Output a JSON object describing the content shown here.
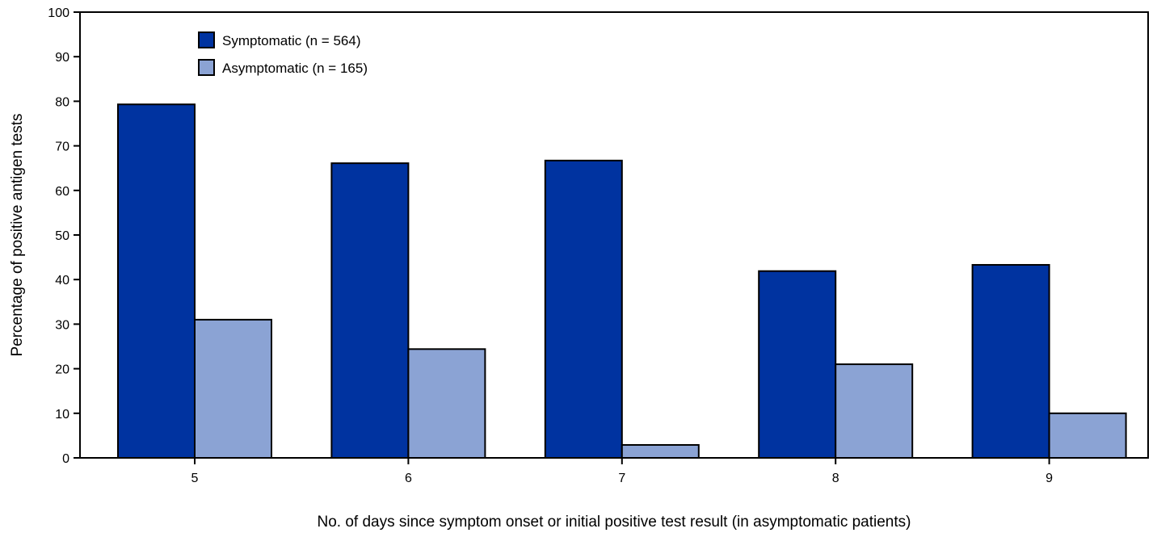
{
  "chart_data": {
    "type": "bar",
    "title": "",
    "xlabel": "No. of days since symptom onset or initial positive test result (in asymptomatic patients)",
    "ylabel": "Percentage of positive antigen tests",
    "categories": [
      "5",
      "6",
      "7",
      "8",
      "9"
    ],
    "series": [
      {
        "name": "Symptomatic (n = 564)",
        "color": "#0033a0",
        "values": [
          79.3,
          66.1,
          66.7,
          41.9,
          43.3
        ]
      },
      {
        "name": "Asymptomatic (n = 165)",
        "color": "#8ba3d4",
        "values": [
          31.0,
          24.4,
          2.9,
          21.0,
          10.0
        ]
      }
    ],
    "ylim": [
      0,
      100
    ],
    "yticks": [
      0,
      10,
      20,
      30,
      40,
      50,
      60,
      70,
      80,
      90,
      100
    ],
    "grid": false,
    "legend_position": "top-left"
  }
}
